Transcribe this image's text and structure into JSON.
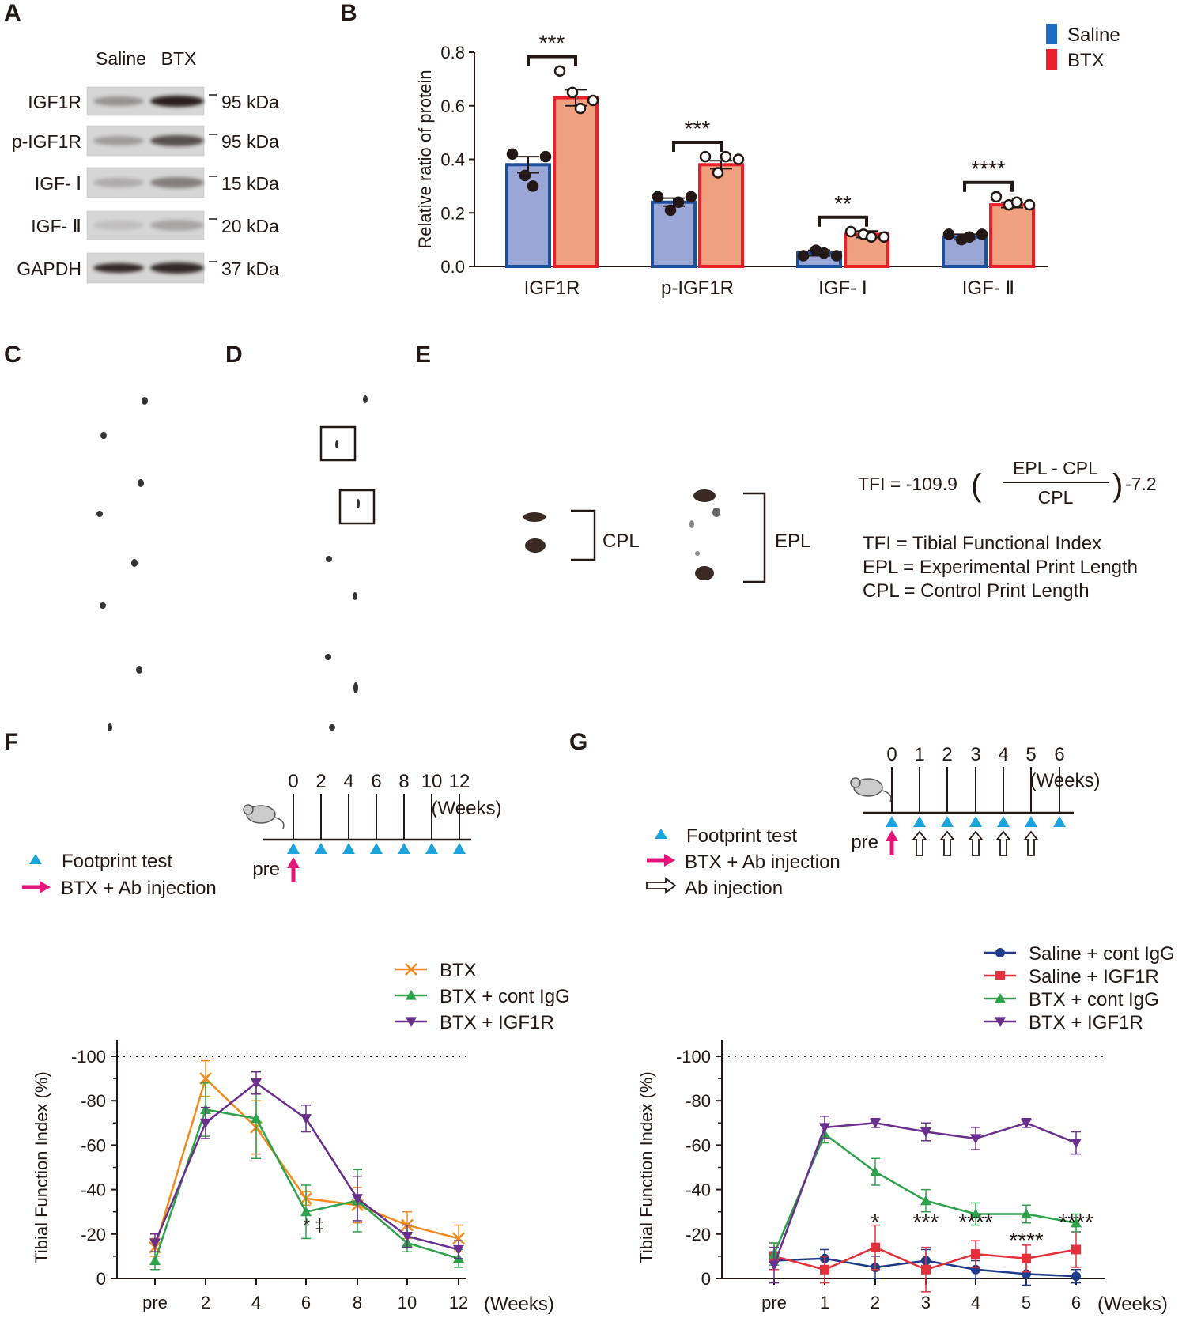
{
  "panels": {
    "a": "A",
    "b": "B",
    "c": "C",
    "d": "D",
    "e": "E",
    "f": "F",
    "g": "G"
  },
  "colors": {
    "saline": "#1F4E9C",
    "btx": "#E8202A",
    "saline_fill": "#9AA6D6",
    "btx_fill": "#F0A07F",
    "orange": "#F08C1E",
    "green": "#2EA24B",
    "purple": "#6A2E8C",
    "navy": "#1F3C8C",
    "red": "#E4303A",
    "cyan": "#1BA3DB",
    "magenta": "#E5157A"
  },
  "blot": {
    "columns": [
      "Saline",
      "BTX"
    ],
    "bands": [
      {
        "name": "IGF1R",
        "kda": "95 kDa"
      },
      {
        "name": "p-IGF1R",
        "kda": "95 kDa"
      },
      {
        "name": "IGF- Ⅰ",
        "kda": "15 kDa"
      },
      {
        "name": "IGF- Ⅱ",
        "kda": "20 kDa"
      },
      {
        "name": "GAPDH",
        "kda": "37 kDa"
      }
    ]
  },
  "panel_e": {
    "cpl_label": "CPL",
    "epl_label": "EPL",
    "formula_lhs": "TFI = -109.9",
    "formula_num": "EPL - CPL",
    "formula_den": "CPL",
    "formula_tail": "-7.2",
    "defs": [
      "TFI = Tibial Functional Index",
      "EPL = Experimental Print Length",
      "CPL = Control Print Length"
    ]
  },
  "panel_f_timeline": {
    "weeks_label": "(Weeks)",
    "ticks": [
      "0",
      "2",
      "4",
      "6",
      "8",
      "10",
      "12"
    ],
    "pre": "pre",
    "legend": [
      "Footprint test",
      "BTX + Ab injection"
    ]
  },
  "panel_g_timeline": {
    "weeks_label": "(Weeks)",
    "ticks": [
      "0",
      "1",
      "2",
      "3",
      "4",
      "5",
      "6"
    ],
    "pre": "pre",
    "legend": [
      "Footprint test",
      "BTX + Ab injection",
      "Ab injection"
    ]
  },
  "chart_data": [
    {
      "id": "B",
      "type": "bar",
      "title": "",
      "ylabel": "Relative ratio of protein",
      "xlabel": "",
      "ylim": [
        0,
        0.8
      ],
      "yticks": [
        "0.0",
        "0.2",
        "0.4",
        "0.6",
        "0.8"
      ],
      "categories": [
        "IGF1R",
        "p-IGF1R",
        "IGF- Ⅰ",
        "IGF- Ⅱ"
      ],
      "series": [
        {
          "name": "Saline",
          "values": [
            0.38,
            0.24,
            0.05,
            0.11
          ],
          "sem": [
            0.03,
            0.015,
            0.01,
            0.01
          ],
          "points": [
            [
              0.42,
              0.34,
              0.3,
              0.41
            ],
            [
              0.26,
              0.21,
              0.24,
              0.26
            ],
            [
              0.04,
              0.06,
              0.05,
              0.04
            ],
            [
              0.12,
              0.1,
              0.11,
              0.12
            ]
          ]
        },
        {
          "name": "BTX",
          "values": [
            0.63,
            0.38,
            0.12,
            0.23
          ],
          "sem": [
            0.03,
            0.015,
            0.012,
            0.01
          ],
          "points": [
            [
              0.73,
              0.65,
              0.59,
              0.62
            ],
            [
              0.41,
              0.35,
              0.41,
              0.4
            ],
            [
              0.13,
              0.12,
              0.11,
              0.11
            ],
            [
              0.26,
              0.23,
              0.24,
              0.23
            ]
          ]
        }
      ],
      "significance": [
        "***",
        "***",
        "**",
        "****"
      ],
      "legend_position": "top-right"
    },
    {
      "id": "F",
      "type": "line",
      "ylabel": "Tibial Function Index (%)",
      "xlabel": "(Weeks)",
      "ylim": [
        -100,
        0
      ],
      "yticks": [
        "0",
        "-20",
        "-40",
        "-60",
        "-80",
        "-100"
      ],
      "x": [
        "pre",
        "2",
        "4",
        "6",
        "8",
        "10",
        "12"
      ],
      "series": [
        {
          "name": "BTX",
          "marker": "x",
          "values": [
            -14,
            -90,
            -68,
            -36,
            -33,
            -24,
            -18
          ],
          "err": [
            4,
            8,
            12,
            3,
            8,
            6,
            6
          ]
        },
        {
          "name": "BTX + cont IgG",
          "marker": "triangle-up",
          "values": [
            -8,
            -76,
            -72,
            -30,
            -35,
            -16,
            -9
          ],
          "err": [
            4,
            12,
            18,
            12,
            14,
            4,
            4
          ]
        },
        {
          "name": "BTX + IGF1R",
          "marker": "triangle-down",
          "values": [
            -16,
            -70,
            -88,
            -72,
            -36,
            -19,
            -13
          ],
          "err": [
            4,
            7,
            5,
            6,
            10,
            5,
            4
          ]
        }
      ],
      "annotation": "* ‡",
      "legend_position": "top"
    },
    {
      "id": "G",
      "type": "line",
      "ylabel": "Tibial Function Index (%)",
      "xlabel": "(Weeks)",
      "ylim": [
        -100,
        0
      ],
      "yticks": [
        "0",
        "-20",
        "-40",
        "-60",
        "-80",
        "-100"
      ],
      "x": [
        "pre",
        "1",
        "2",
        "3",
        "4",
        "5",
        "6"
      ],
      "series": [
        {
          "name": "Saline + cont IgG",
          "marker": "circle",
          "values": [
            -8,
            -9,
            -5,
            -8,
            -4,
            -2,
            -1
          ],
          "err": [
            4,
            4,
            5,
            5,
            4,
            5,
            3
          ]
        },
        {
          "name": "Saline + IGF1R",
          "marker": "square",
          "values": [
            -10,
            -4,
            -14,
            -4,
            -11,
            -9,
            -13
          ],
          "err": [
            6,
            6,
            10,
            10,
            6,
            6,
            8
          ]
        },
        {
          "name": "BTX + cont IgG",
          "marker": "triangle-up",
          "values": [
            -11,
            -65,
            -48,
            -35,
            -29,
            -29,
            -25
          ],
          "err": [
            5,
            4,
            6,
            5,
            5,
            4,
            4
          ]
        },
        {
          "name": "BTX + IGF1R",
          "marker": "triangle-down",
          "values": [
            -6,
            -68,
            -70,
            -66,
            -63,
            -70,
            -61
          ],
          "err": [
            8,
            5,
            2,
            4,
            5,
            2,
            5
          ]
        }
      ],
      "significance": [
        "",
        "",
        "*",
        "***",
        "****",
        "****",
        "****"
      ],
      "legend_position": "top-right"
    }
  ]
}
